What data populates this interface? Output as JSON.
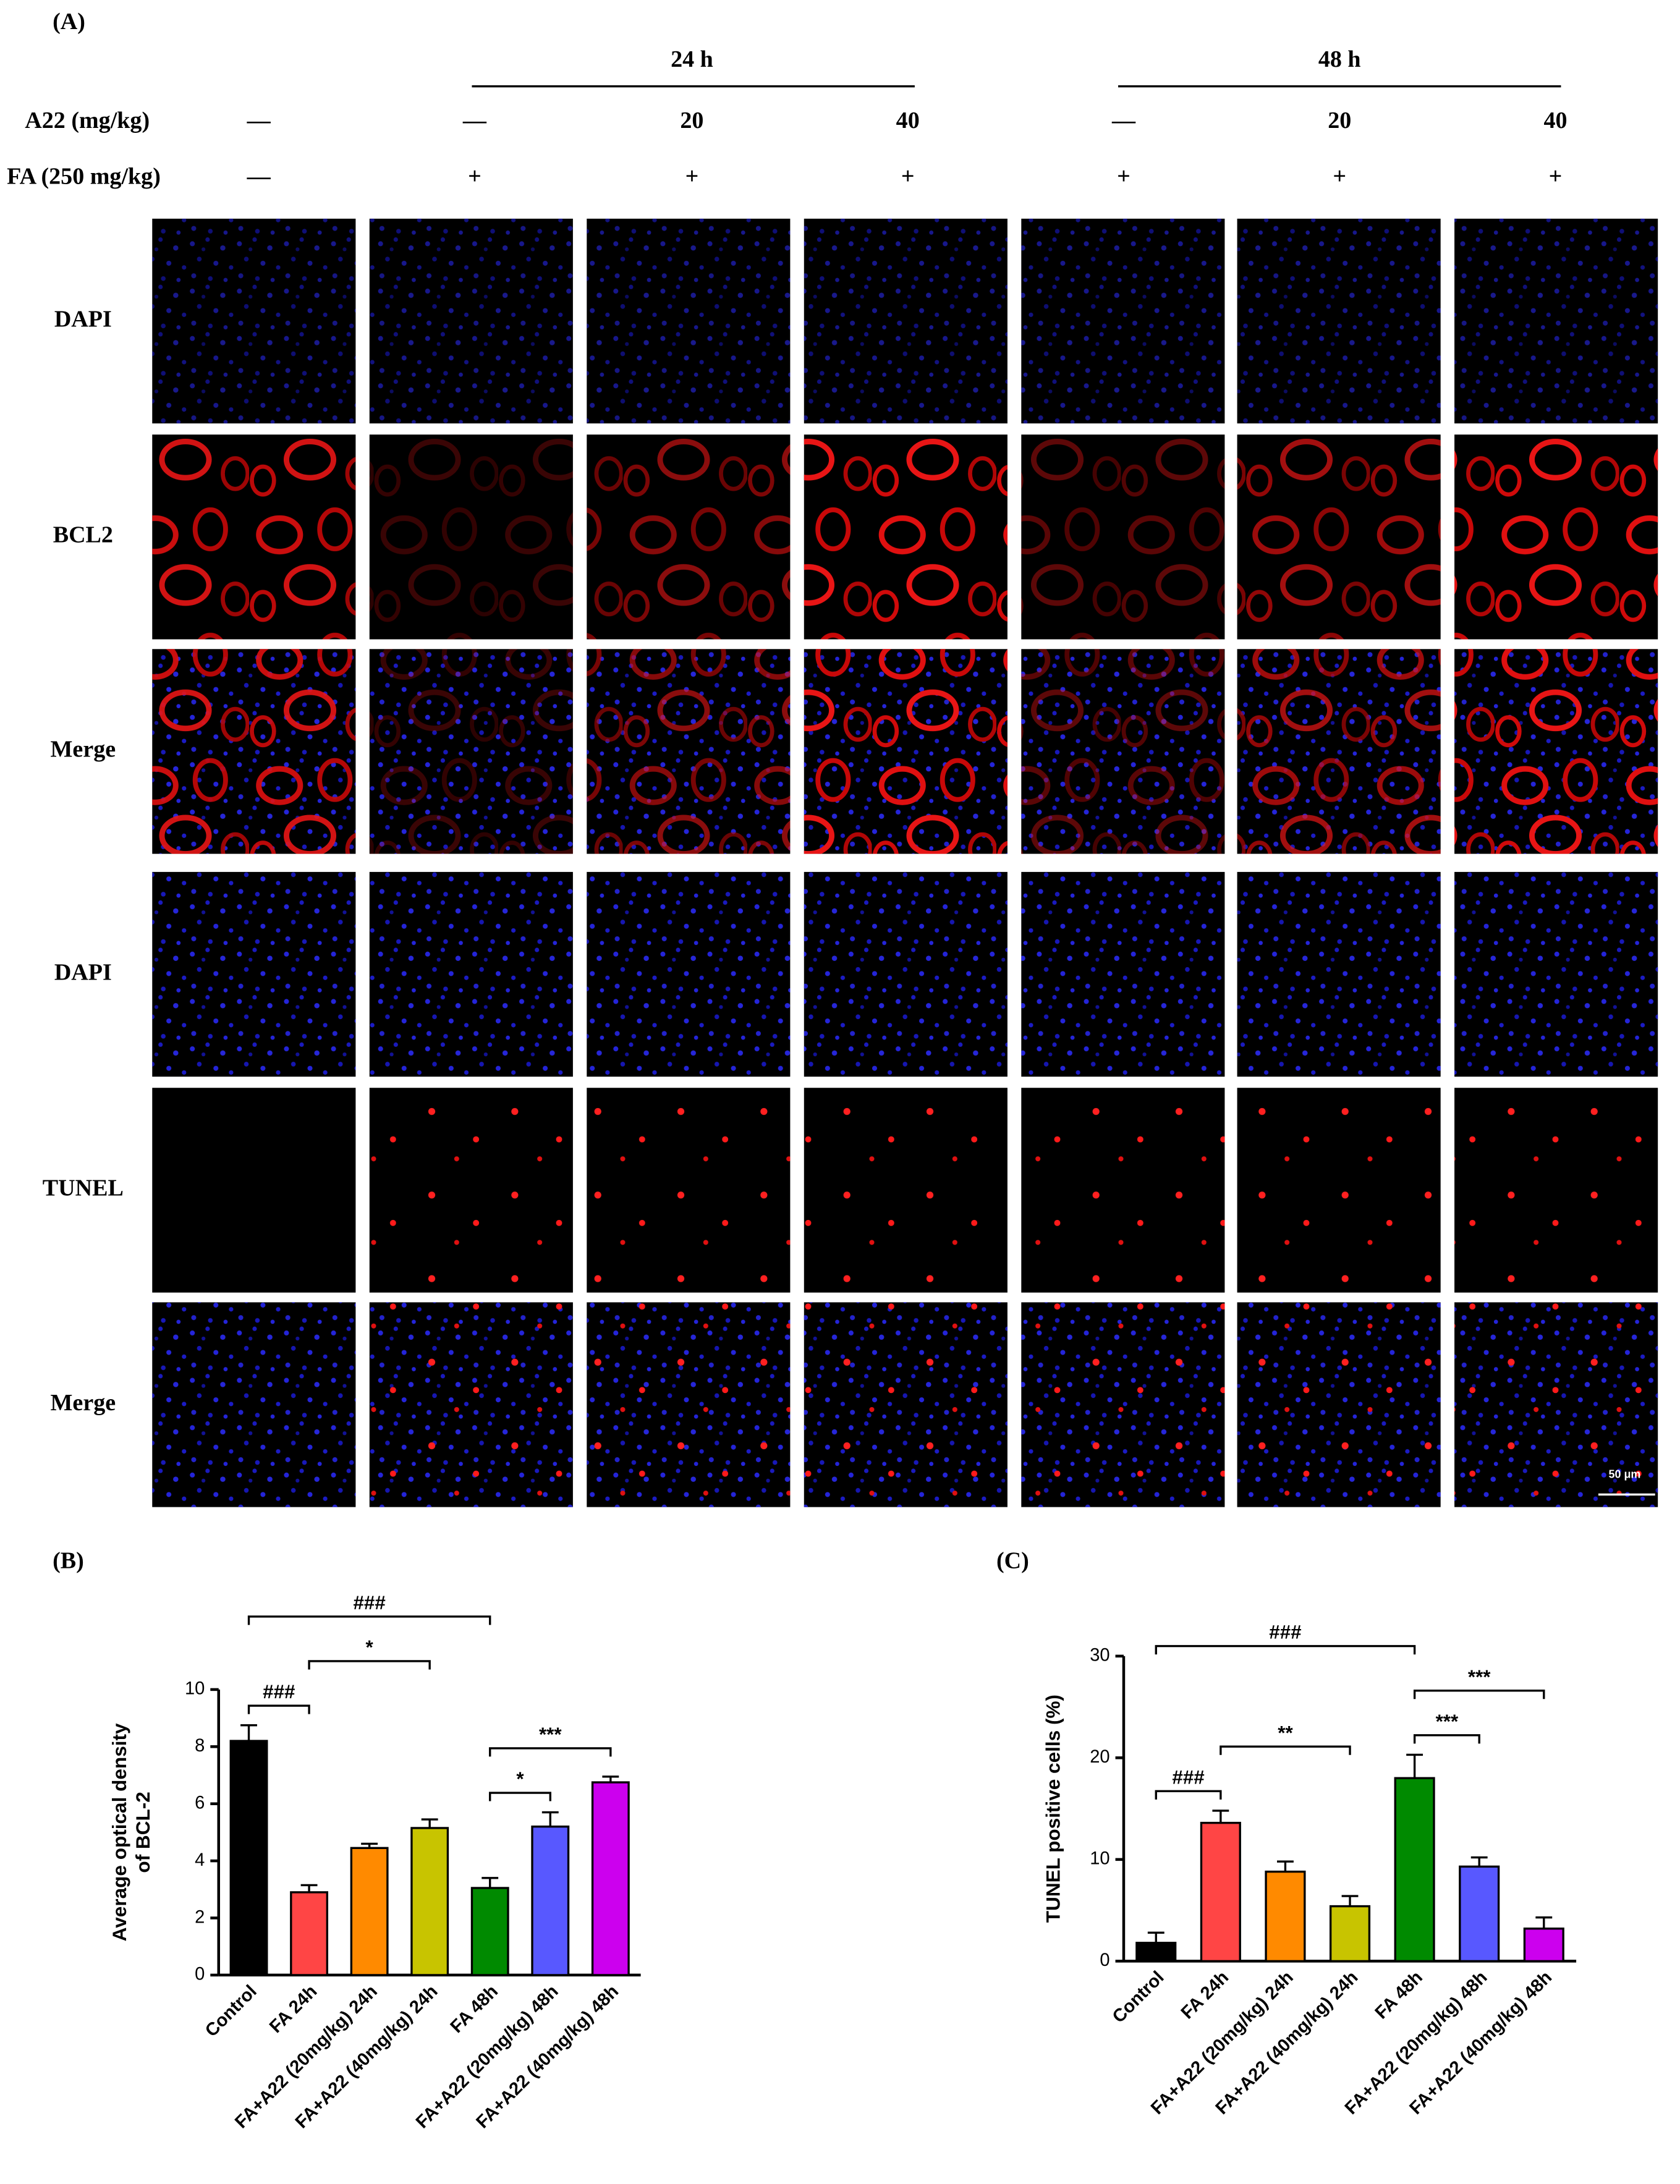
{
  "panel_a": {
    "label": "(A)",
    "time_groups": [
      "24 h",
      "48 h"
    ],
    "rows": [
      {
        "label": "A22 (mg/kg)",
        "values": [
          "—",
          "—",
          "20",
          "40",
          "—",
          "20",
          "40"
        ]
      },
      {
        "label": "FA (250 mg/kg)",
        "values": [
          "—",
          "+",
          "+",
          "+",
          "+",
          "+",
          "+"
        ]
      }
    ],
    "image_rows": [
      "DAPI",
      "BCL2",
      "Merge",
      "DAPI",
      "TUNEL",
      "Merge"
    ],
    "scale_bar": "50 μm"
  },
  "chart_data": [
    {
      "type": "bar",
      "panel_label": "(B)",
      "categories": [
        "Control",
        "FA 24h",
        "FA+A22 (20mg/kg) 24h",
        "FA+A22 (40mg/kg) 24h",
        "FA 48h",
        "FA+A22 (20mg/kg) 48h",
        "FA+A22 (40mg/kg) 48h"
      ],
      "values": [
        8.2,
        2.9,
        4.45,
        5.15,
        3.05,
        5.2,
        6.75
      ],
      "errors": [
        0.55,
        0.25,
        0.15,
        0.3,
        0.35,
        0.5,
        0.2
      ],
      "colors": [
        "#000000",
        "#ff4545",
        "#ff8a00",
        "#c8c400",
        "#008a00",
        "#5858ff",
        "#cc00ee"
      ],
      "ylim": [
        0,
        10
      ],
      "yticks": [
        0,
        2,
        4,
        6,
        8,
        10
      ],
      "y_label": [
        "Average optical density",
        "of BCL-2"
      ],
      "comparisons": [
        {
          "groups": [
            0,
            1
          ],
          "label": "###"
        },
        {
          "groups": [
            0,
            4
          ],
          "label": "###"
        },
        {
          "groups": [
            1,
            3
          ],
          "label": "*"
        },
        {
          "groups": [
            4,
            5
          ],
          "label": "*"
        },
        {
          "groups": [
            4,
            6
          ],
          "label": "***"
        }
      ]
    },
    {
      "type": "bar",
      "panel_label": "(C)",
      "categories": [
        "Control",
        "FA 24h",
        "FA+A22 (20mg/kg) 24h",
        "FA+A22 (40mg/kg) 24h",
        "FA 48h",
        "FA+A22 (20mg/kg) 48h",
        "FA+A22 (40mg/kg) 48h"
      ],
      "values": [
        1.8,
        13.6,
        8.8,
        5.4,
        18.0,
        9.3,
        3.2
      ],
      "errors": [
        1.0,
        1.2,
        1.0,
        1.0,
        2.3,
        0.9,
        1.1
      ],
      "colors": [
        "#000000",
        "#ff4545",
        "#ff8a00",
        "#c8c400",
        "#008a00",
        "#5858ff",
        "#cc00ee"
      ],
      "ylim": [
        0,
        30
      ],
      "yticks": [
        0,
        10,
        20,
        30
      ],
      "y_label": [
        "TUNEL positive cells (%)"
      ],
      "comparisons": [
        {
          "groups": [
            0,
            1
          ],
          "label": "###"
        },
        {
          "groups": [
            1,
            3
          ],
          "label": "**"
        },
        {
          "groups": [
            4,
            5
          ],
          "label": "***"
        },
        {
          "groups": [
            4,
            6
          ],
          "label": "***"
        },
        {
          "groups": [
            0,
            4
          ],
          "label": "###"
        }
      ]
    }
  ]
}
